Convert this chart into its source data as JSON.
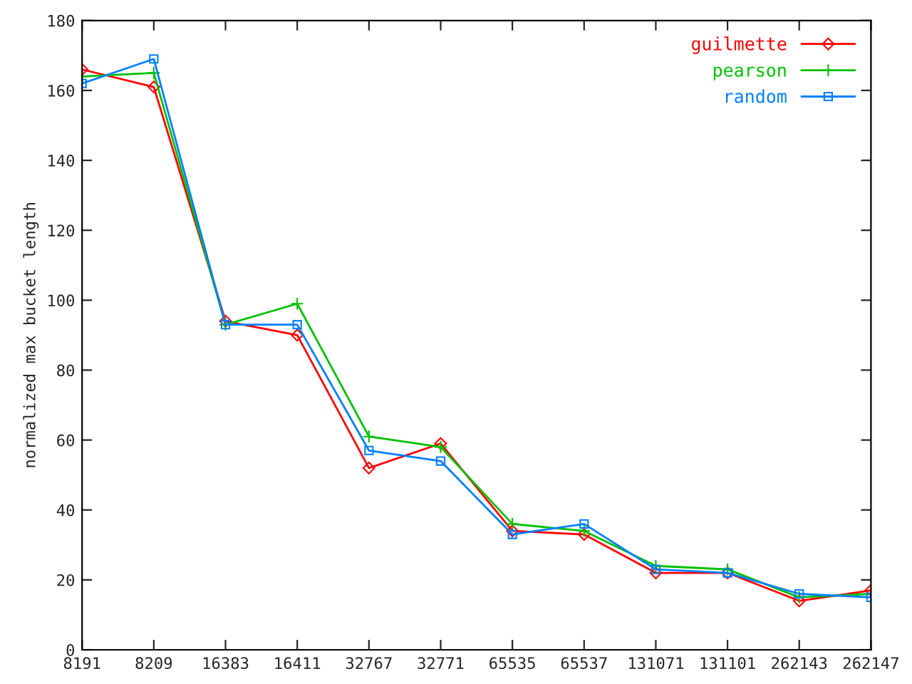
{
  "chart_data": {
    "type": "line",
    "ylabel": "normalized max bucket length",
    "categories": [
      "8191",
      "8209",
      "16383",
      "16411",
      "32767",
      "32771",
      "65535",
      "65537",
      "131071",
      "131101",
      "262143",
      "262147"
    ],
    "series": [
      {
        "name": "guilmette",
        "color": "#ff0000",
        "marker": "diamond",
        "values": [
          166,
          161,
          94,
          90,
          52,
          59,
          34,
          33,
          22,
          22,
          14,
          17
        ]
      },
      {
        "name": "pearson",
        "color": "#00c000",
        "marker": "cross",
        "values": [
          164,
          165,
          93,
          99,
          61,
          58,
          36,
          34,
          24,
          23,
          15,
          16
        ]
      },
      {
        "name": "random",
        "color": "#0080ff",
        "marker": "square",
        "values": [
          162,
          169,
          93,
          93,
          57,
          54,
          33,
          36,
          23,
          22,
          16,
          15
        ]
      }
    ],
    "ylim": [
      0,
      180
    ],
    "yticks": [
      0,
      20,
      40,
      60,
      80,
      100,
      120,
      140,
      160,
      180
    ],
    "legend": "top right",
    "grid": false,
    "line_style": "solid"
  }
}
